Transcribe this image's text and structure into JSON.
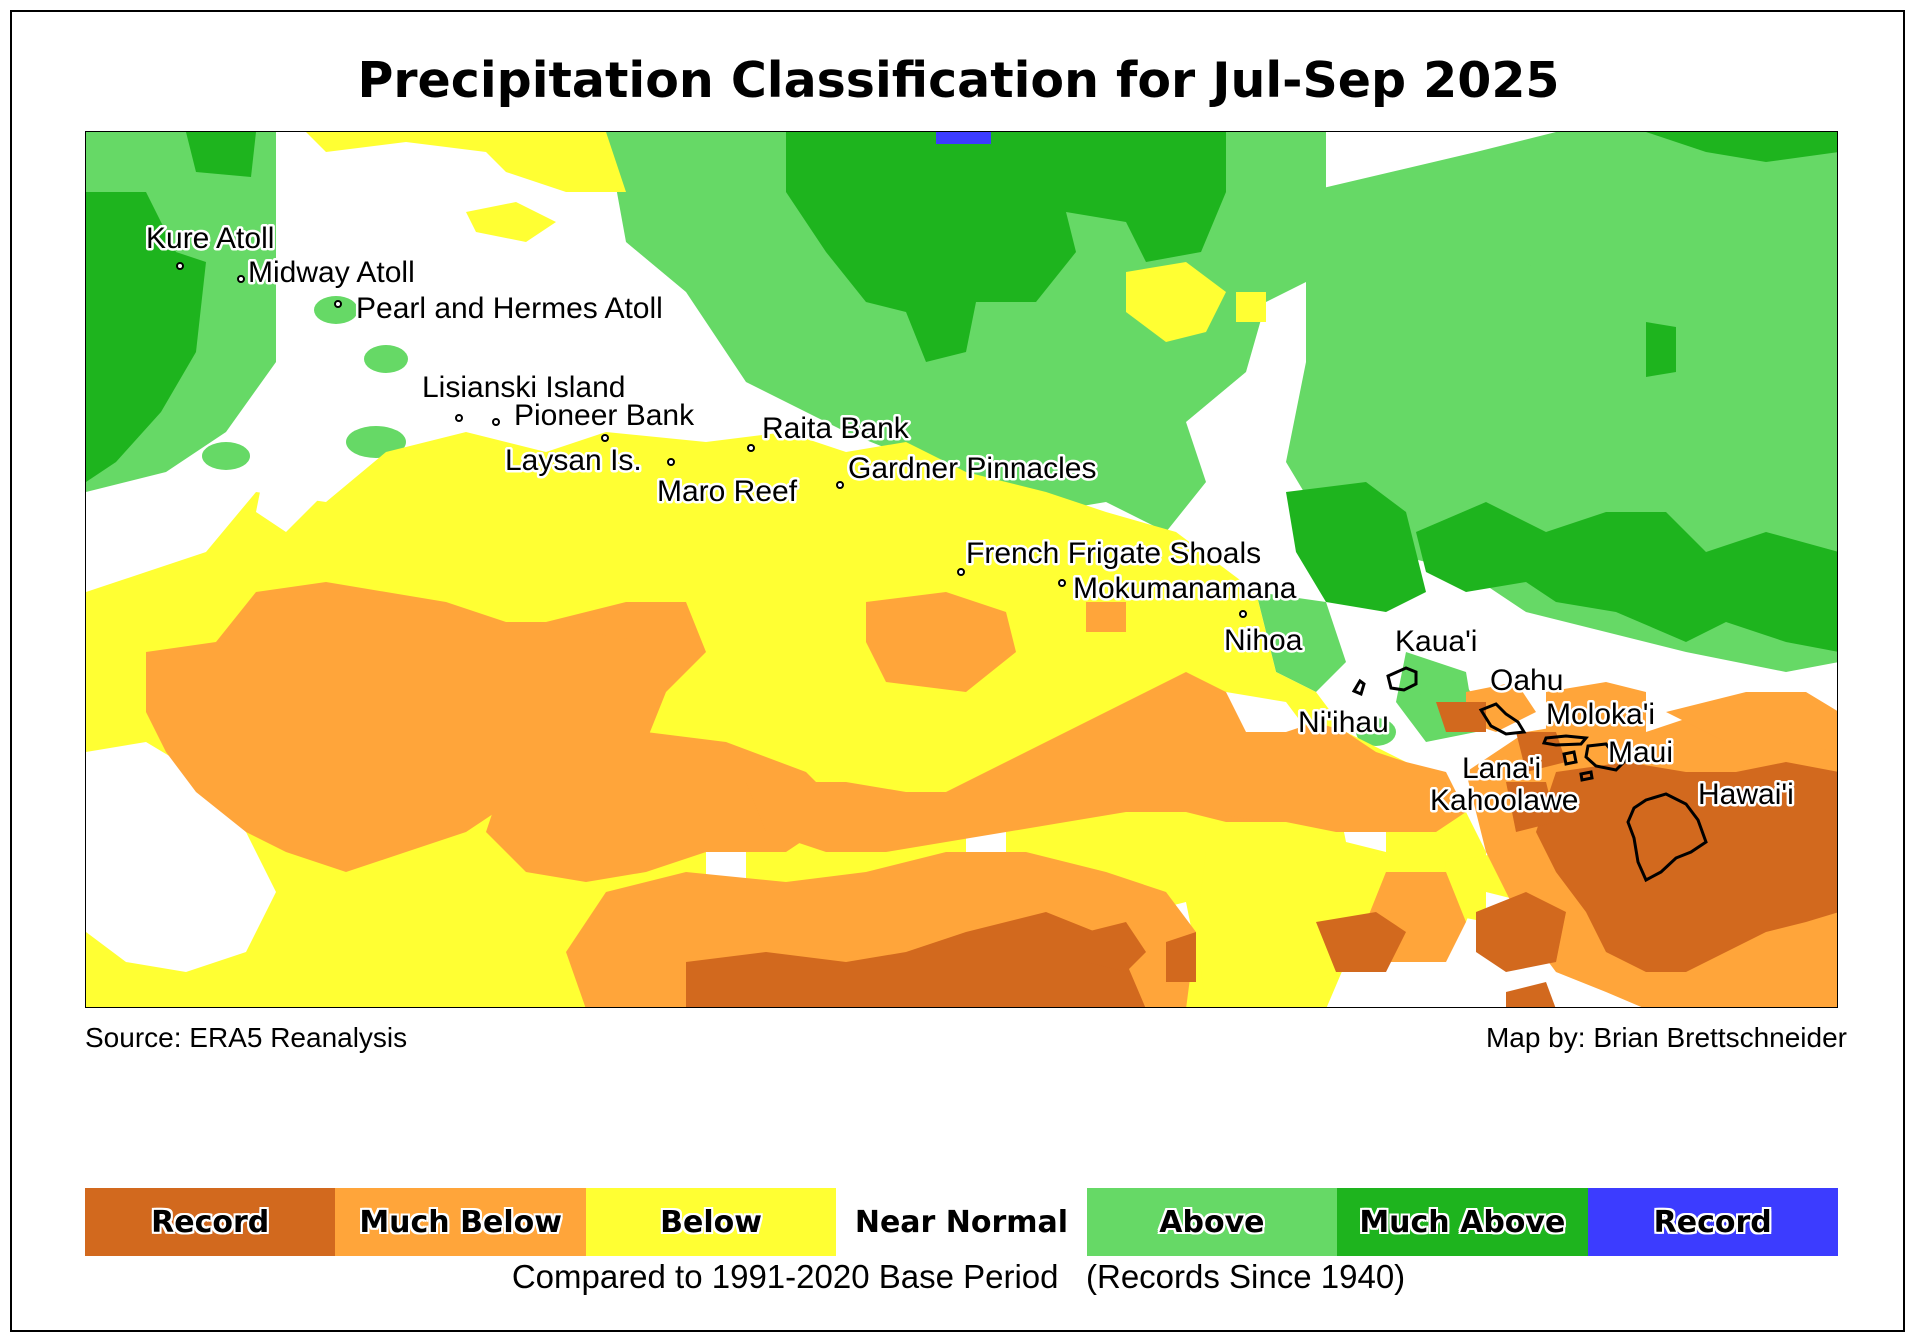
{
  "title": "Precipitation Classification for Jul-Sep 2025",
  "source": "Source: ERA5 Reanalysis",
  "map_by": "Map by: Brian Brettschneider",
  "legend": {
    "categories": [
      {
        "label": "Record",
        "color": "#d2691e"
      },
      {
        "label": "Much Below",
        "color": "#ffa53a"
      },
      {
        "label": "Below",
        "color": "#ffff33"
      },
      {
        "label": "Near Normal",
        "color": "#ffffff"
      },
      {
        "label": "Above",
        "color": "#66d966"
      },
      {
        "label": "Much Above",
        "color": "#1eb41e"
      },
      {
        "label": "Record",
        "color": "#3c3cff"
      }
    ],
    "note": "Compared to 1991-2020 Base Period   (Records Since 1940)"
  },
  "places": [
    {
      "name": "Kure Atoll"
    },
    {
      "name": "Midway Atoll"
    },
    {
      "name": "Pearl and Hermes Atoll"
    },
    {
      "name": "Lisianski Island"
    },
    {
      "name": "Pioneer Bank"
    },
    {
      "name": "Raita Bank"
    },
    {
      "name": "Laysan Is."
    },
    {
      "name": "Gardner Pinnacles"
    },
    {
      "name": "Maro Reef"
    },
    {
      "name": "French Frigate Shoals"
    },
    {
      "name": "Mokumanamana"
    },
    {
      "name": "Nihoa"
    },
    {
      "name": "Kaua'i"
    },
    {
      "name": "Oahu"
    },
    {
      "name": "Ni'ihau"
    },
    {
      "name": "Moloka'i"
    },
    {
      "name": "Maui"
    },
    {
      "name": "Lana'i"
    },
    {
      "name": "Kahoolawe"
    },
    {
      "name": "Hawai'i"
    }
  ]
}
